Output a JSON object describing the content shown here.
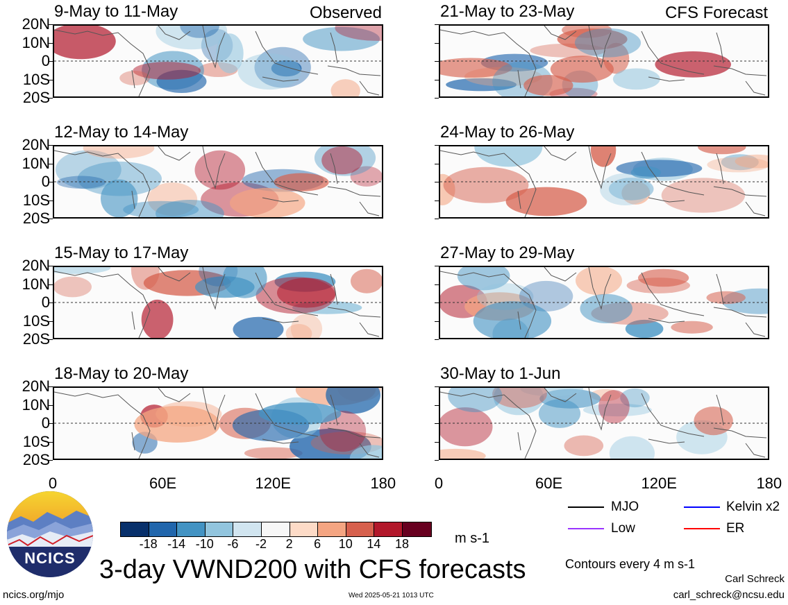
{
  "panels": [
    {
      "id": "p1",
      "title": "9-May to 11-May",
      "note": "Observed"
    },
    {
      "id": "p2",
      "title": "21-May to 23-May",
      "note": "CFS Forecast"
    },
    {
      "id": "p3",
      "title": "12-May to 14-May",
      "note": ""
    },
    {
      "id": "p4",
      "title": "24-May to 26-May",
      "note": ""
    },
    {
      "id": "p5",
      "title": "15-May to 17-May",
      "note": ""
    },
    {
      "id": "p6",
      "title": "27-May to 29-May",
      "note": ""
    },
    {
      "id": "p7",
      "title": "18-May to 20-May",
      "note": ""
    },
    {
      "id": "p8",
      "title": "30-May to 1-Jun",
      "note": ""
    }
  ],
  "lat_labels": [
    "20N",
    "10N",
    "0",
    "10S",
    "20S"
  ],
  "lon_labels": [
    "0",
    "60E",
    "120E",
    "180"
  ],
  "colorbar": {
    "colors": [
      "#08306b",
      "#2166ac",
      "#4393c3",
      "#92c5de",
      "#d1e5f0",
      "#f7f7f7",
      "#fddbc7",
      "#f4a582",
      "#d6604d",
      "#b2182b",
      "#67001f"
    ],
    "ticks": [
      "-18",
      "-14",
      "-10",
      "-6",
      "-2",
      "2",
      "6",
      "10",
      "14",
      "18"
    ],
    "units": "m s-1"
  },
  "legend": {
    "mjo": "MJO",
    "kelvin": "Kelvin x2",
    "low": "Low",
    "er": "ER",
    "mjo_color": "#000000",
    "kelvin_color": "#0000ff",
    "low_color": "#9933ff",
    "er_color": "#ff0000"
  },
  "contour_note": "Contours every 4 m s-1",
  "main_title": "3-day VWND200 with CFS forecasts",
  "logo_text": "NCICS",
  "website": "ncics.org/mjo",
  "timestamp": "Wed 2025-05-21 1013 UTC",
  "author": "Carl Schreck",
  "email": "carl_schreck@ncsu.edu"
}
